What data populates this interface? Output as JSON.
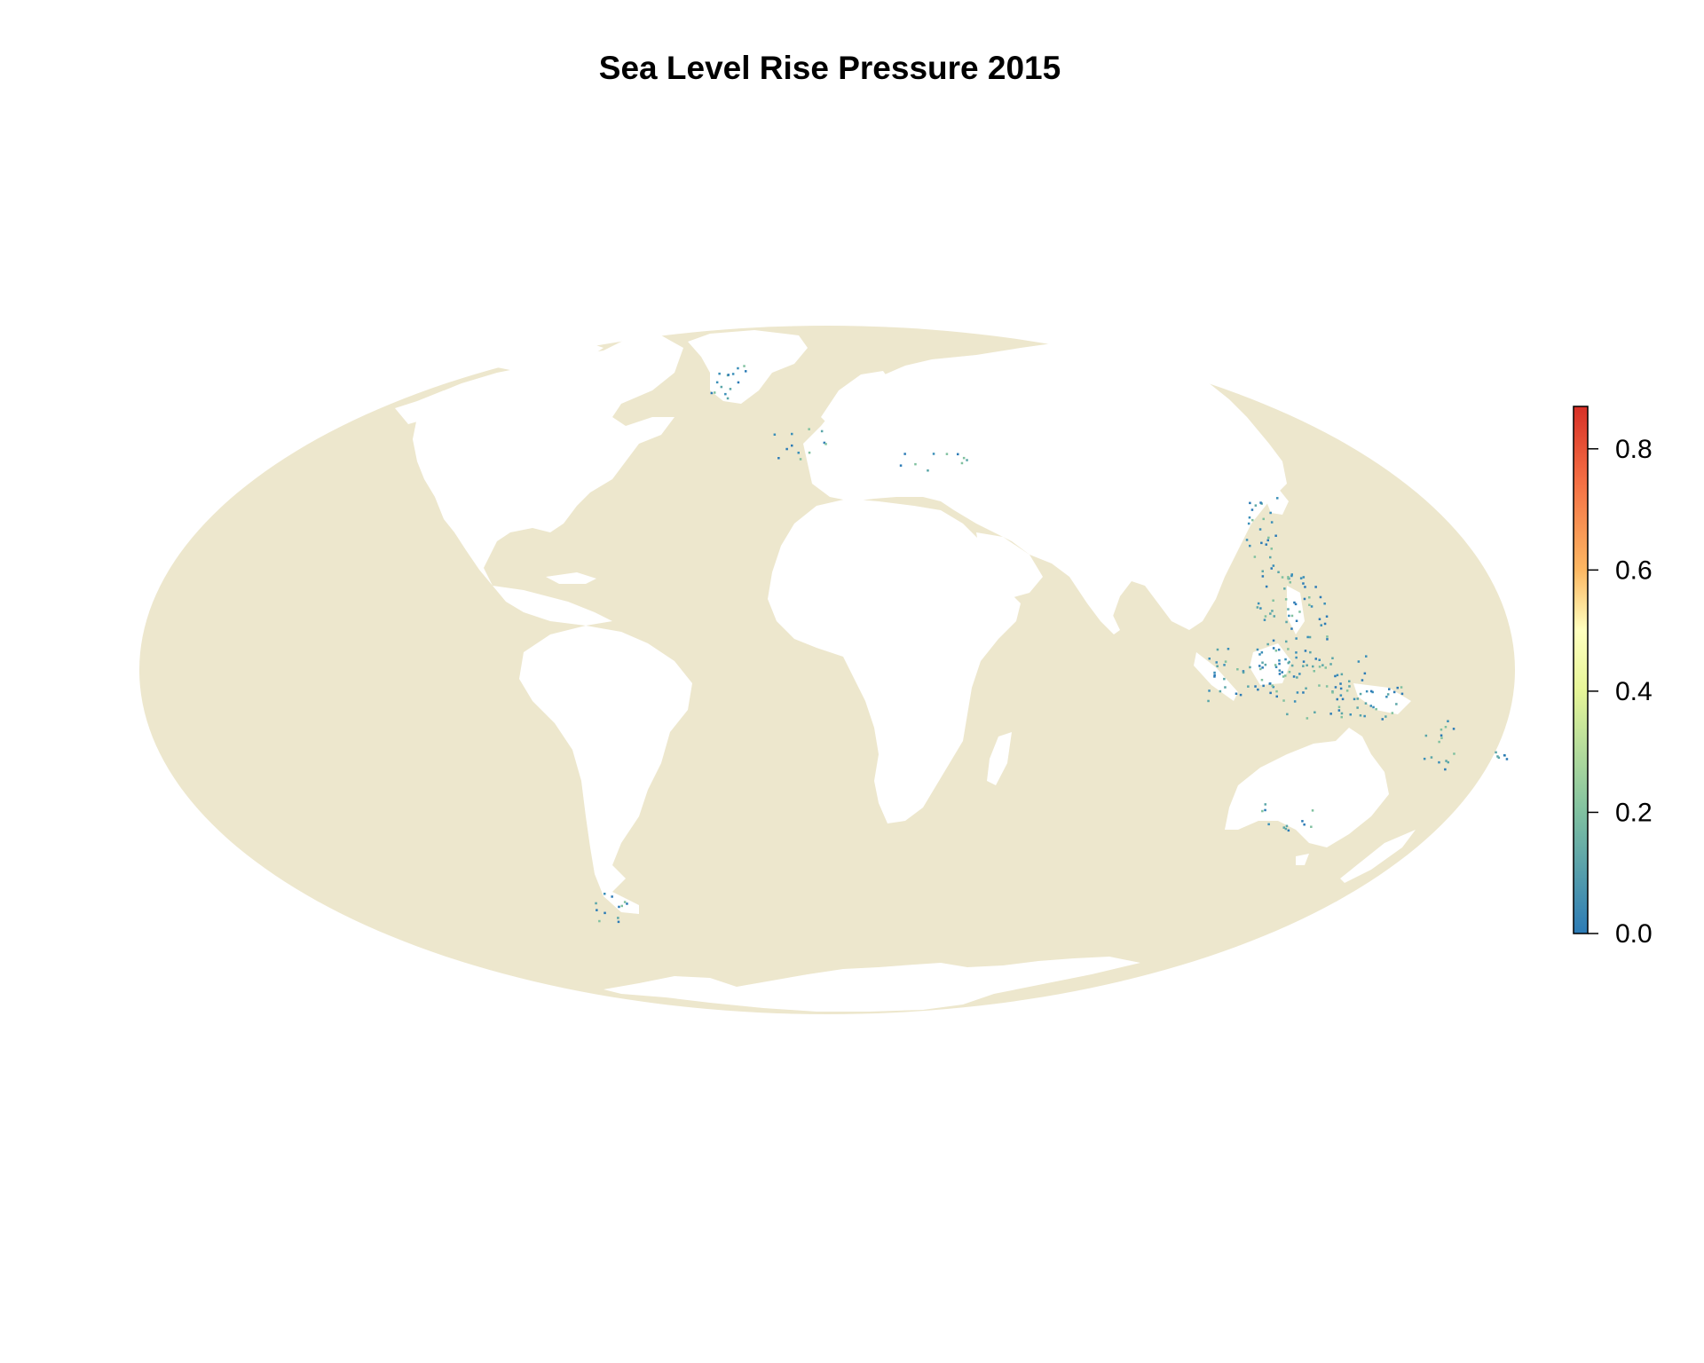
{
  "title": "Sea Level Rise Pressure 2015",
  "map": {
    "projection": "mollweide",
    "ocean_color": "#ede7cd",
    "land_color": "#ffffff"
  },
  "legend": {
    "placement": "right",
    "min": 0.0,
    "max": 0.87,
    "ticks": [
      {
        "value": 0.0,
        "label": "0.0"
      },
      {
        "value": 0.2,
        "label": "0.2"
      },
      {
        "value": 0.4,
        "label": "0.4"
      },
      {
        "value": 0.6,
        "label": "0.6"
      },
      {
        "value": 0.8,
        "label": "0.8"
      }
    ],
    "color_stops": [
      {
        "value": 0.0,
        "color": "#2c7bb6"
      },
      {
        "value": 0.2,
        "color": "#80c1a0"
      },
      {
        "value": 0.4,
        "color": "#e6f598"
      },
      {
        "value": 0.5,
        "color": "#ffffbf"
      },
      {
        "value": 0.6,
        "color": "#fdb863"
      },
      {
        "value": 0.75,
        "color": "#f46d43"
      },
      {
        "value": 0.87,
        "color": "#d73027"
      }
    ]
  }
}
